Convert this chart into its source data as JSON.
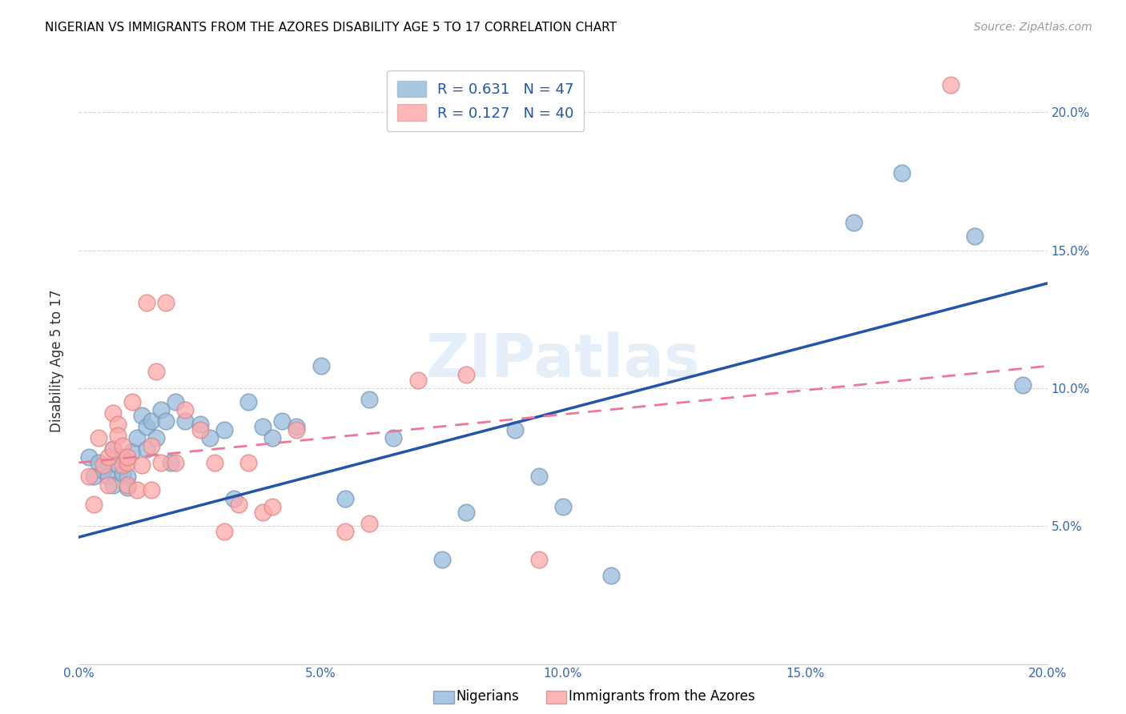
{
  "title": "NIGERIAN VS IMMIGRANTS FROM THE AZORES DISABILITY AGE 5 TO 17 CORRELATION CHART",
  "source": "Source: ZipAtlas.com",
  "ylabel": "Disability Age 5 to 17",
  "xlim": [
    0.0,
    0.2
  ],
  "ylim": [
    0.0,
    0.22
  ],
  "yticks": [
    0.05,
    0.1,
    0.15,
    0.2
  ],
  "xticks": [
    0.0,
    0.05,
    0.1,
    0.15,
    0.2
  ],
  "xtick_labels": [
    "0.0%",
    "5.0%",
    "10.0%",
    "15.0%",
    "20.0%"
  ],
  "ytick_labels": [
    "5.0%",
    "10.0%",
    "15.0%",
    "20.0%"
  ],
  "blue_color": "#99BBDD",
  "pink_color": "#FFAAAA",
  "blue_edge_color": "#7799BB",
  "pink_edge_color": "#DD8888",
  "legend_blue_R": "R = 0.631",
  "legend_blue_N": "N = 47",
  "legend_pink_R": "R = 0.127",
  "legend_pink_N": "N = 40",
  "blue_line_color": "#2255AA",
  "pink_line_color": "#EE7799",
  "watermark": "ZIPatlas",
  "blue_scatter_x": [
    0.002,
    0.003,
    0.004,
    0.005,
    0.006,
    0.007,
    0.007,
    0.008,
    0.009,
    0.009,
    0.01,
    0.01,
    0.011,
    0.012,
    0.013,
    0.014,
    0.014,
    0.015,
    0.016,
    0.017,
    0.018,
    0.019,
    0.02,
    0.022,
    0.025,
    0.027,
    0.03,
    0.032,
    0.035,
    0.038,
    0.04,
    0.042,
    0.045,
    0.05,
    0.055,
    0.06,
    0.065,
    0.075,
    0.08,
    0.09,
    0.095,
    0.1,
    0.11,
    0.16,
    0.17,
    0.185,
    0.195
  ],
  "blue_scatter_y": [
    0.075,
    0.068,
    0.073,
    0.07,
    0.068,
    0.078,
    0.065,
    0.072,
    0.075,
    0.069,
    0.068,
    0.064,
    0.077,
    0.082,
    0.09,
    0.086,
    0.078,
    0.088,
    0.082,
    0.092,
    0.088,
    0.073,
    0.095,
    0.088,
    0.087,
    0.082,
    0.085,
    0.06,
    0.095,
    0.086,
    0.082,
    0.088,
    0.086,
    0.108,
    0.06,
    0.096,
    0.082,
    0.038,
    0.055,
    0.085,
    0.068,
    0.057,
    0.032,
    0.16,
    0.178,
    0.155,
    0.101
  ],
  "pink_scatter_x": [
    0.002,
    0.003,
    0.004,
    0.005,
    0.006,
    0.006,
    0.007,
    0.007,
    0.008,
    0.008,
    0.009,
    0.009,
    0.01,
    0.01,
    0.01,
    0.011,
    0.012,
    0.013,
    0.014,
    0.015,
    0.015,
    0.016,
    0.017,
    0.018,
    0.02,
    0.022,
    0.025,
    0.028,
    0.03,
    0.033,
    0.035,
    0.038,
    0.04,
    0.045,
    0.055,
    0.06,
    0.07,
    0.08,
    0.095,
    0.18
  ],
  "pink_scatter_y": [
    0.068,
    0.058,
    0.082,
    0.072,
    0.075,
    0.065,
    0.091,
    0.078,
    0.087,
    0.083,
    0.079,
    0.072,
    0.073,
    0.075,
    0.065,
    0.095,
    0.063,
    0.072,
    0.131,
    0.079,
    0.063,
    0.106,
    0.073,
    0.131,
    0.073,
    0.092,
    0.085,
    0.073,
    0.048,
    0.058,
    0.073,
    0.055,
    0.057,
    0.085,
    0.048,
    0.051,
    0.103,
    0.105,
    0.038,
    0.21
  ],
  "blue_line_x0": 0.0,
  "blue_line_y0": 0.046,
  "blue_line_x1": 0.2,
  "blue_line_y1": 0.138,
  "pink_line_x0": 0.0,
  "pink_line_y0": 0.073,
  "pink_line_x1": 0.2,
  "pink_line_y1": 0.108
}
